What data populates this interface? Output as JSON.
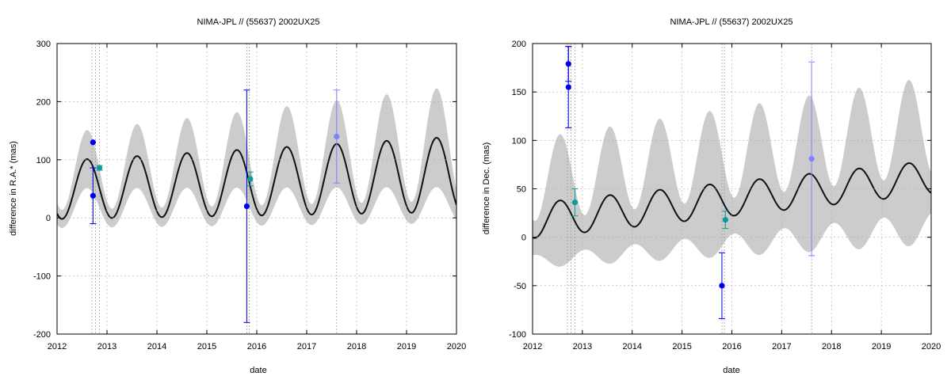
{
  "chart_data": [
    {
      "type": "line",
      "title": "NIMA-JPL // (55637) 2002UX25",
      "xlabel": "date",
      "ylabel": "difference in R.A.* (mas)",
      "xlim": [
        2012,
        2020
      ],
      "ylim": [
        -200,
        300
      ],
      "xticks": [
        "2012",
        "2013",
        "2014",
        "2015",
        "2016",
        "2017",
        "2018",
        "2019",
        "2020"
      ],
      "yticks": [
        "-200",
        "-100",
        "0",
        "100",
        "200",
        "300"
      ],
      "grid": true,
      "colors": {
        "curve": "#111111",
        "band": "#cccccc",
        "blue": "#0000ee",
        "teal": "#0a9a9a",
        "light": "#8080ff",
        "vline": "#999999"
      },
      "vlines": [
        2012.7,
        2012.77,
        2012.85,
        2015.8,
        2015.85,
        2017.6
      ],
      "model": {
        "offset_start": 48,
        "offset_end": 75,
        "amp_start": 50,
        "amp_end": 65,
        "band_start": 35,
        "band_end": 90,
        "band_amp_start": 35,
        "band_amp_end": 75,
        "phase_peak": 2012.6
      },
      "series": [
        {
          "color": "blue",
          "points": [
            {
              "x": 2012.72,
              "y": 130,
              "err": null
            },
            {
              "x": 2012.72,
              "y": 38,
              "err": 48
            },
            {
              "x": 2015.8,
              "y": 20,
              "err": 200
            }
          ]
        },
        {
          "color": "teal",
          "points": [
            {
              "x": 2012.85,
              "y": 86,
              "err": 4
            },
            {
              "x": 2015.87,
              "y": 67,
              "err": 12
            }
          ]
        },
        {
          "color": "light",
          "points": [
            {
              "x": 2017.6,
              "y": 140,
              "err": 80
            }
          ]
        }
      ]
    },
    {
      "type": "line",
      "title": "NIMA-JPL // (55637) 2002UX25",
      "xlabel": "date",
      "ylabel": "difference in Dec. (mas)",
      "xlim": [
        2012,
        2020
      ],
      "ylim": [
        -100,
        200
      ],
      "xticks": [
        "2012",
        "2013",
        "2014",
        "2015",
        "2016",
        "2017",
        "2018",
        "2019",
        "2020"
      ],
      "yticks": [
        "-100",
        "-50",
        "0",
        "50",
        "100",
        "150",
        "200"
      ],
      "grid": true,
      "colors": {
        "curve": "#111111",
        "band": "#cccccc",
        "blue": "#0000ee",
        "teal": "#0a9a9a",
        "light": "#8080ff",
        "vline": "#999999"
      },
      "vlines": [
        2012.7,
        2012.77,
        2012.85,
        2015.8,
        2015.85,
        2017.6
      ],
      "model": {
        "offset_start": 17,
        "offset_end": 62,
        "amp_start": 18,
        "amp_end": 17,
        "band_start": 17,
        "band_end": 62,
        "band_amp_start": 55,
        "band_amp_end": 75,
        "phase_peak": 2012.55
      },
      "series": [
        {
          "color": "blue",
          "points": [
            {
              "x": 2012.72,
              "y": 179,
              "err": 18
            },
            {
              "x": 2012.72,
              "y": 155,
              "err": 42
            },
            {
              "x": 2015.8,
              "y": -50,
              "err": 34
            }
          ]
        },
        {
          "color": "teal",
          "points": [
            {
              "x": 2012.85,
              "y": 36,
              "err": 14
            },
            {
              "x": 2015.87,
              "y": 18,
              "err": 9
            }
          ]
        },
        {
          "color": "light",
          "points": [
            {
              "x": 2017.6,
              "y": 81,
              "err": 100
            }
          ]
        }
      ]
    }
  ]
}
